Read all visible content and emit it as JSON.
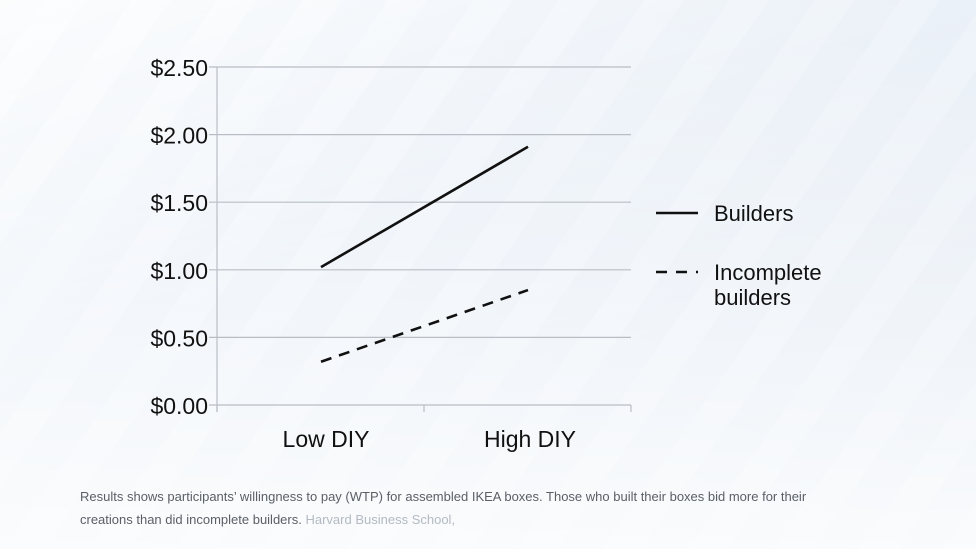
{
  "chart_data": {
    "type": "line",
    "categories": [
      "Low DIY",
      "High DIY"
    ],
    "series": [
      {
        "name": "Builders",
        "values": [
          1.02,
          1.91
        ],
        "style": "solid",
        "color": "#111111"
      },
      {
        "name": "Incomplete builders",
        "values": [
          0.32,
          0.85
        ],
        "style": "dashed",
        "color": "#111111"
      }
    ],
    "y_ticks": [
      "$0.00",
      "$0.50",
      "$1.00",
      "$1.50",
      "$2.00",
      "$2.50"
    ],
    "y_tick_values": [
      0,
      0.5,
      1.0,
      1.5,
      2.0,
      2.5
    ],
    "ylim": [
      0,
      2.5
    ],
    "grid": true,
    "legend_position": "right"
  },
  "caption": {
    "text": "Results shows participants’ willingness to pay (WTP) for assembled IKEA boxes. Those who built their boxes bid more for their creations than did incomplete builders.",
    "credit": "Harvard Business School,"
  },
  "colors": {
    "grid": "#b9bec6",
    "text": "#111111",
    "caption": "#5a5f66"
  }
}
